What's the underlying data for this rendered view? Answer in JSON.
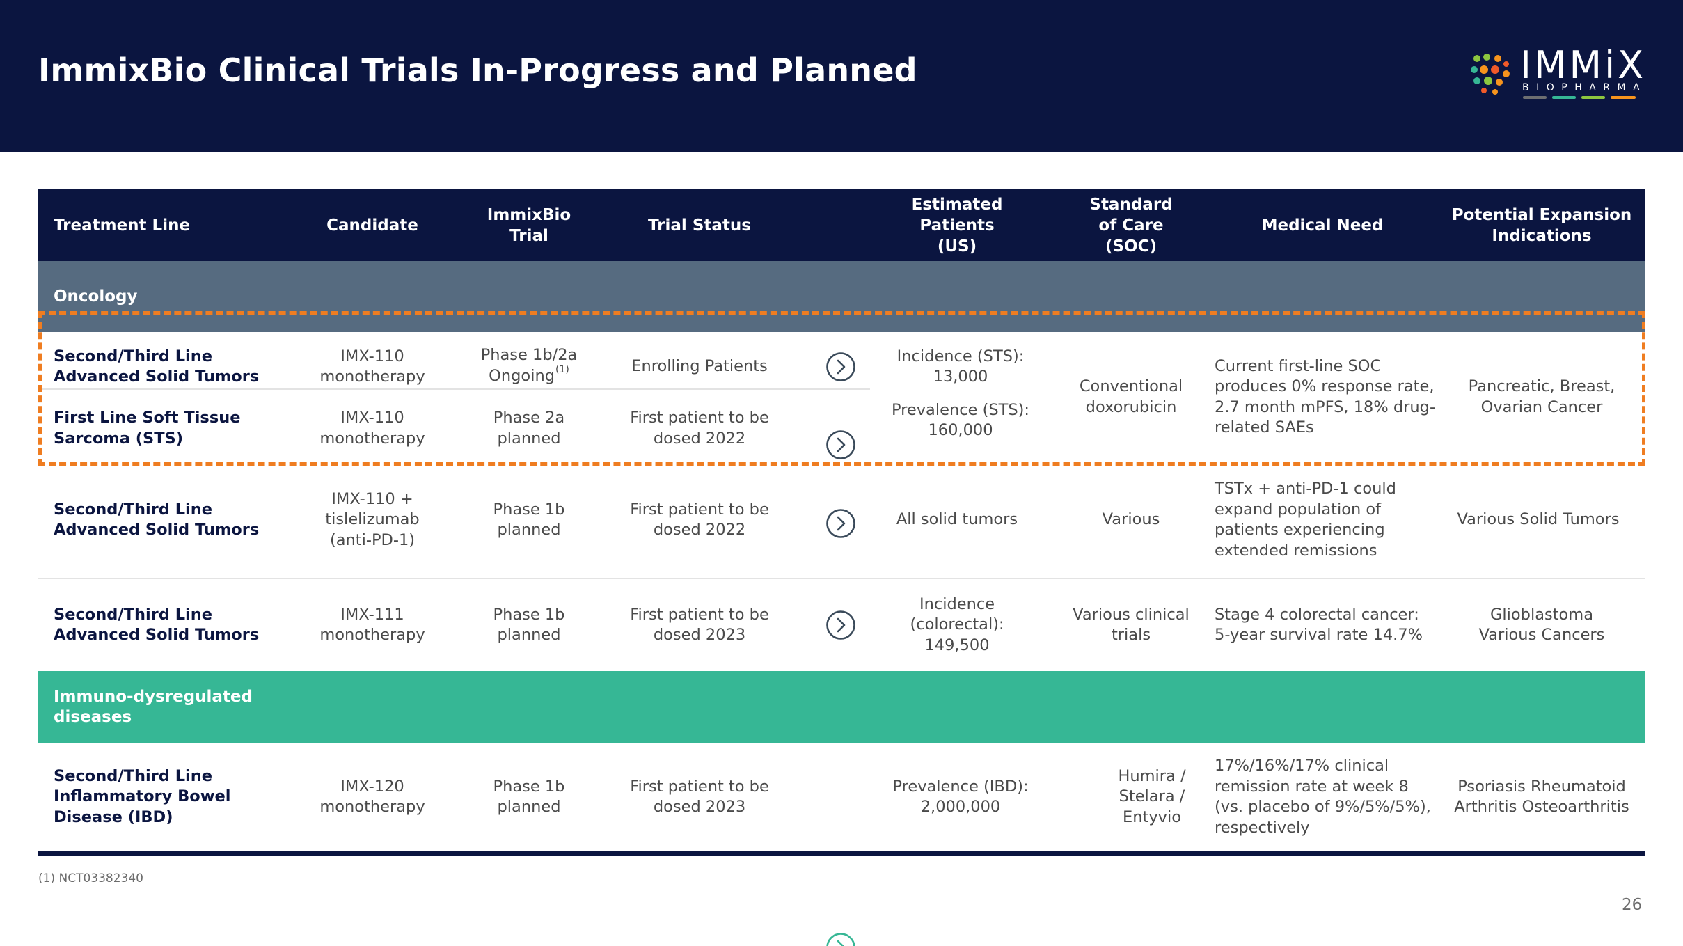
{
  "slide": {
    "title": "ImmixBio Clinical Trials In-Progress and Planned",
    "page_number": "26",
    "footnote": "(1) NCT03382340"
  },
  "logo": {
    "wordmark": "IMMiX",
    "subword": "BIOPHARMA",
    "colors": [
      "#6d6e71",
      "#36b795",
      "#8dc63f",
      "#f15a29",
      "#f7941d"
    ]
  },
  "colors": {
    "navy": "#0b1540",
    "oncology_band": "#566b80",
    "immuno_band": "#36b795",
    "highlight_dash": "#ef7d21"
  },
  "table": {
    "headers": {
      "treatment_line": "Treatment Line",
      "candidate": "Candidate",
      "trial": "ImmixBio Trial",
      "status": "Trial Status",
      "patients": "Estimated Patients (US)",
      "soc": "Standard of Care (SOC)",
      "need": "Medical Need",
      "expansion": "Potential Expansion Indications"
    },
    "sections": {
      "oncology": "Oncology",
      "immuno": "Immuno-dysregulated diseases"
    },
    "rows": [
      {
        "treatment_line": "Second/Third Line Advanced Solid Tumors",
        "candidate": "IMX-110 monotherapy",
        "trial": "Phase 1b/2a Ongoing",
        "trial_note": "(1)",
        "status": "Enrolling Patients",
        "arrow_icon": "chevron-right-circle-icon"
      },
      {
        "treatment_line": "First Line Soft Tissue Sarcoma (STS)",
        "candidate": "IMX-110 monotherapy",
        "trial": "Phase 2a planned",
        "status": "First patient to be dosed 2022",
        "arrow_icon": "chevron-right-circle-icon"
      },
      {
        "treatment_line": "Second/Third Line Advanced Solid Tumors",
        "candidate": "IMX-110 + tislelizumab (anti-PD-1)",
        "trial": "Phase 1b planned",
        "status": "First patient to be dosed 2022",
        "patients": "All solid tumors",
        "soc": "Various",
        "need": "TSTx + anti-PD-1 could expand population of patients experiencing extended remissions",
        "expansion": "Various Solid Tumors",
        "arrow_icon": "chevron-right-circle-icon"
      },
      {
        "treatment_line": "Second/Third Line Advanced Solid Tumors",
        "candidate": "IMX-111 monotherapy",
        "trial": "Phase 1b planned",
        "status": "First patient to be dosed 2023",
        "patients": "Incidence (colorectal): 149,500",
        "soc": "Various clinical trials",
        "need": "Stage 4 colorectal cancer: 5-year survival rate 14.7%",
        "expansion": "Glioblastoma Various Cancers",
        "arrow_icon": "chevron-right-circle-icon"
      },
      {
        "treatment_line": "Second/Third Line Inflammatory Bowel Disease (IBD)",
        "candidate": "IMX-120 monotherapy",
        "trial": "Phase 1b planned",
        "status": "First patient to be dosed 2023",
        "patients": "Prevalence (IBD): 2,000,000",
        "soc": "Humira / Stelara / Entyvio",
        "need": "17%/16%/17% clinical remission rate at week 8 (vs. placebo of 9%/5%/5%), respectively",
        "expansion": "Psoriasis Rheumatoid Arthritis Osteoarthritis",
        "arrow_icon": "chevron-right-circle-icon"
      }
    ],
    "sts_group": {
      "incidence": "Incidence (STS): 13,000",
      "prevalence": "Prevalence (STS): 160,000",
      "soc": "Conventional doxorubicin",
      "need": "Current first-line SOC produces 0% response rate, 2.7 month mPFS, 18% drug-related SAEs",
      "expansion": "Pancreatic, Breast, Ovarian Cancer"
    }
  }
}
